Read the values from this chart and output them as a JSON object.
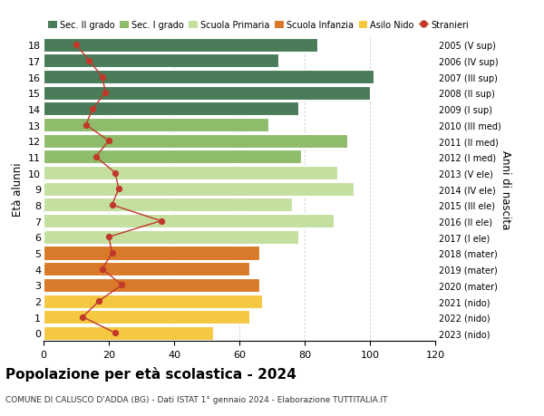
{
  "ages": [
    18,
    17,
    16,
    15,
    14,
    13,
    12,
    11,
    10,
    9,
    8,
    7,
    6,
    5,
    4,
    3,
    2,
    1,
    0
  ],
  "right_labels": [
    "2005 (V sup)",
    "2006 (IV sup)",
    "2007 (III sup)",
    "2008 (II sup)",
    "2009 (I sup)",
    "2010 (III med)",
    "2011 (II med)",
    "2012 (I med)",
    "2013 (V ele)",
    "2014 (IV ele)",
    "2015 (III ele)",
    "2016 (II ele)",
    "2017 (I ele)",
    "2018 (mater)",
    "2019 (mater)",
    "2020 (mater)",
    "2021 (nido)",
    "2022 (nido)",
    "2023 (nido)"
  ],
  "bar_values": [
    84,
    72,
    101,
    100,
    78,
    69,
    93,
    79,
    90,
    95,
    76,
    89,
    78,
    66,
    63,
    66,
    67,
    63,
    52
  ],
  "bar_colors": [
    "#4a7c59",
    "#4a7c59",
    "#4a7c59",
    "#4a7c59",
    "#4a7c59",
    "#8fbc6a",
    "#8fbc6a",
    "#8fbc6a",
    "#c5dfa0",
    "#c5dfa0",
    "#c5dfa0",
    "#c5dfa0",
    "#c5dfa0",
    "#d97a2a",
    "#d97a2a",
    "#d97a2a",
    "#f5c842",
    "#f5c842",
    "#f5c842"
  ],
  "stranieri_values": [
    10,
    14,
    18,
    19,
    15,
    13,
    20,
    16,
    22,
    23,
    21,
    36,
    20,
    21,
    18,
    24,
    17,
    12,
    22
  ],
  "stranieri_color": "#c0392b",
  "title": "Popolazione per età scolastica - 2024",
  "subtitle": "COMUNE DI CALUSCO D'ADDA (BG) - Dati ISTAT 1° gennaio 2024 - Elaborazione TUTTITALIA.IT",
  "ylabel": "Età alunni",
  "right_ylabel": "Anni di nascita",
  "xlim": [
    0,
    120
  ],
  "xticks": [
    0,
    20,
    40,
    60,
    80,
    100,
    120
  ],
  "legend_labels": [
    "Sec. II grado",
    "Sec. I grado",
    "Scuola Primaria",
    "Scuola Infanzia",
    "Asilo Nido",
    "Stranieri"
  ],
  "legend_colors": [
    "#4a7c59",
    "#8fbc6a",
    "#c5dfa0",
    "#d97a2a",
    "#f5c842",
    "#c0392b"
  ],
  "background_color": "#ffffff",
  "grid_color": "#cccccc"
}
